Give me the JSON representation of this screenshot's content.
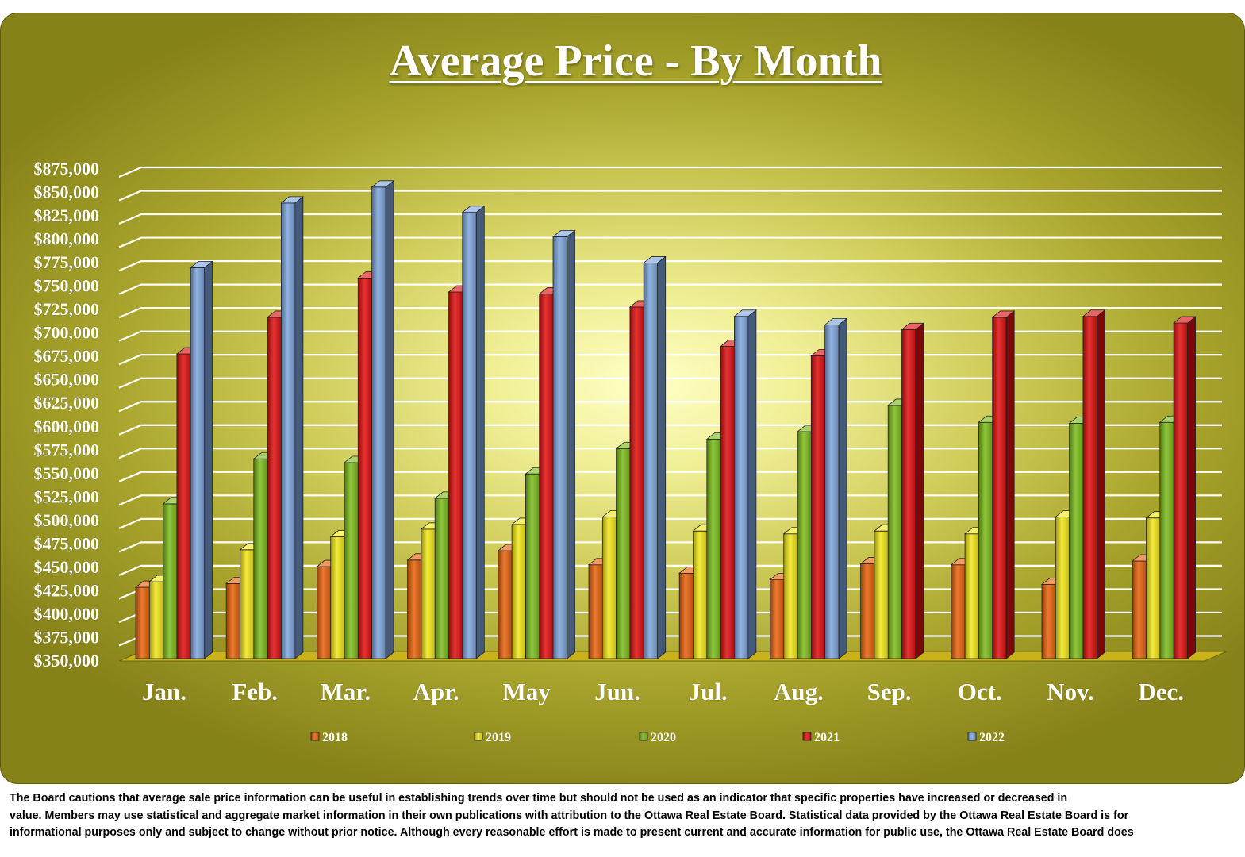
{
  "chart_data": {
    "type": "bar",
    "title": "Average Price - By Month",
    "categories": [
      "Jan.",
      "Feb.",
      "Mar.",
      "Apr.",
      "May",
      "Jun.",
      "Jul.",
      "Aug.",
      "Sep.",
      "Oct.",
      "Nov.",
      "Dec."
    ],
    "series": [
      {
        "name": "2018",
        "color": "#e8620c",
        "values": [
          427000,
          431000,
          449000,
          456000,
          466000,
          451000,
          442000,
          435000,
          452000,
          451000,
          430000,
          455000
        ]
      },
      {
        "name": "2019",
        "color": "#f2e81a",
        "values": [
          433000,
          467000,
          481000,
          489000,
          494000,
          502000,
          487000,
          484000,
          487000,
          484000,
          502000,
          501000
        ]
      },
      {
        "name": "2020",
        "color": "#7cbc1c",
        "values": [
          516000,
          564000,
          560000,
          522000,
          548000,
          575000,
          585000,
          593000,
          621000,
          603000,
          602000,
          603000
        ]
      },
      {
        "name": "2021",
        "color": "#e01010",
        "values": [
          676000,
          715000,
          757000,
          742000,
          740000,
          726000,
          684000,
          674000,
          702000,
          715000,
          716000,
          709000
        ]
      },
      {
        "name": "2022",
        "color": "#7fa6dc",
        "values": [
          768000,
          837000,
          854000,
          827000,
          801000,
          773000,
          716000,
          707000,
          null,
          null,
          null,
          null
        ]
      }
    ],
    "ylim": [
      350000,
      875000
    ],
    "y_ticks": [
      "$350,000",
      "$375,000",
      "$400,000",
      "$425,000",
      "$450,000",
      "$475,000",
      "$500,000",
      "$525,000",
      "$550,000",
      "$575,000",
      "$600,000",
      "$625,000",
      "$650,000",
      "$675,000",
      "$700,000",
      "$725,000",
      "$750,000",
      "$775,000",
      "$800,000",
      "$825,000",
      "$850,000",
      "$875,000"
    ],
    "xlabel": "",
    "ylabel": "",
    "grid": true,
    "legend": "bottom"
  },
  "disclaimer": [
    "The Board cautions that average sale price information can be useful in establishing trends over time but should not be used as an indicator that specific properties have increased or decreased in",
    "value.  Members may use statistical and aggregate market information in their own publications with attribution to the Ottawa Real Estate Board. Statistical data provided by the Ottawa Real Estate Board is for",
    "informational purposes only and subject to change without prior notice. Although every reasonable effort is made to present current and accurate information for public use, the Ottawa Real Estate Board does"
  ]
}
